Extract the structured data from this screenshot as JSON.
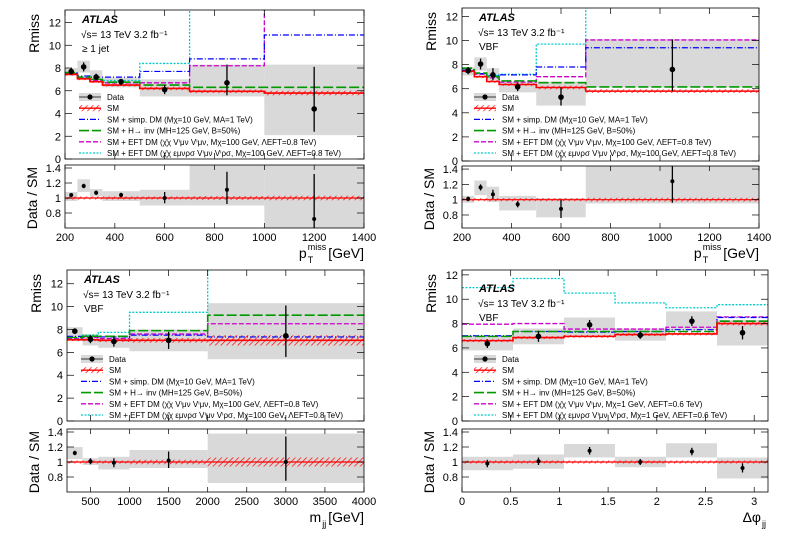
{
  "colors": {
    "data": "#000000",
    "sm": "#ff0000",
    "simp_dm": "#0000ff",
    "h_inv": "#009900",
    "eft1": "#cc00cc",
    "eft2": "#00cccc",
    "unc_band": "#d9d9d9"
  },
  "chart_data": [
    {
      "type": "line",
      "experiment": "ATLAS",
      "energy": "√s= 13 TeV  3.2 fb⁻¹",
      "region": "≥ 1 jet",
      "ylabel": "Rmiss",
      "ratio_ylabel": "Data / SM",
      "xlabel": "p",
      "xlabel_main": "p",
      "xlabel_sup": "miss",
      "xlabel_sub": "T",
      "xlabel_unit": " [GeV]",
      "xlim": [
        200,
        1400
      ],
      "ylim": [
        0,
        13.1
      ],
      "ratio_ylim": [
        0.6,
        1.44
      ],
      "xticks": [
        200,
        400,
        600,
        800,
        1000,
        1200,
        1400
      ],
      "yticks": [
        0,
        2,
        4,
        6,
        8,
        10,
        12
      ],
      "ratio_yticks": [
        0.8,
        1,
        1.2,
        1.4
      ],
      "bin_edges": [
        200,
        250,
        300,
        350,
        500,
        700,
        1000,
        1400
      ],
      "data": {
        "x": [
          225,
          275,
          325,
          425,
          600,
          850,
          1200
        ],
        "y": [
          7.7,
          8.1,
          7.2,
          6.8,
          6.1,
          6.7,
          4.4
        ],
        "lo": [
          7.4,
          7.7,
          6.95,
          6.5,
          5.7,
          5.6,
          2.4
        ],
        "hi": [
          8.0,
          8.5,
          7.5,
          7.0,
          6.5,
          8.3,
          8.1
        ]
      },
      "unc_box": {
        "lo": [
          7.3,
          7.6,
          6.95,
          6.3,
          5.5,
          5.5,
          2.1
        ],
        "hi": [
          8.0,
          8.65,
          7.8,
          7.15,
          7.0,
          8.3,
          8.3
        ]
      },
      "sm": {
        "values": [
          7.45,
          7.05,
          6.8,
          6.5,
          6.2,
          5.95,
          5.8
        ],
        "band": [
          0.12,
          0.12,
          0.12,
          0.12,
          0.15,
          0.15,
          0.2
        ]
      },
      "models": {
        "simp_dm": [
          7.55,
          7.3,
          7.2,
          7.2,
          7.7,
          8.8,
          10.9
        ],
        "h_inv": [
          7.6,
          7.2,
          7.0,
          6.75,
          6.5,
          6.3,
          6.3
        ],
        "eft1": [
          7.5,
          7.1,
          6.9,
          6.7,
          6.7,
          8.2,
          null
        ],
        "eft2": [
          7.55,
          7.15,
          7.0,
          6.9,
          8.4,
          null,
          null
        ]
      },
      "ratio": {
        "y": [
          1.04,
          1.16,
          1.07,
          1.04,
          1.0,
          1.11,
          0.72
        ],
        "lo": [
          1.02,
          1.13,
          1.04,
          1.01,
          0.93,
          0.92,
          0.45
        ],
        "hi": [
          1.06,
          1.19,
          1.1,
          1.07,
          1.08,
          1.35,
          1.32
        ],
        "box_lo": [
          0.96,
          1.08,
          1.02,
          0.96,
          0.9,
          0.9,
          0.55
        ],
        "box_hi": [
          1.08,
          1.25,
          1.12,
          1.09,
          1.11,
          1.44,
          1.44
        ],
        "sm_band": [
          0.02,
          0.02,
          0.02,
          0.02,
          0.02,
          0.025,
          0.03
        ]
      },
      "legend": [
        "Data",
        "SM",
        "SM + simp. DM (Mχ=10 GeV, MA=1 TeV)",
        "SM + H→ inv (MH=125 GeV, B=50%)",
        "SM + EFT DM (χ̄χ Vⁱμν Vⁱμν, Mχ=100 GeV, ΛEFT=0.8 TeV)",
        "SM + EFT DM (χ̄χ εμνρσ Vⁱμν Vⁱρσ, Mχ=100 GeV, ΛEFT=0.8 TeV)"
      ]
    },
    {
      "type": "line",
      "experiment": "ATLAS",
      "energy": "√s= 13 TeV  3.2 fb⁻¹",
      "region": "VBF",
      "ylabel": "Rmiss",
      "ratio_ylabel": "Data / SM",
      "xlabel_main": "p",
      "xlabel_sup": "miss",
      "xlabel_sub": "T",
      "xlabel_unit": " [GeV]",
      "xlim": [
        200,
        1400
      ],
      "ylim": [
        0,
        12.7
      ],
      "ratio_ylim": [
        0.63,
        1.44
      ],
      "xticks": [
        200,
        400,
        600,
        800,
        1000,
        1200,
        1400
      ],
      "yticks": [
        0,
        2,
        4,
        6,
        8,
        10,
        12
      ],
      "ratio_yticks": [
        0.8,
        1,
        1.2,
        1.4
      ],
      "bin_edges": [
        200,
        250,
        300,
        350,
        500,
        700,
        1400
      ],
      "data": {
        "x": [
          225,
          275,
          325,
          425,
          600,
          1050
        ],
        "y": [
          7.5,
          8.05,
          7.15,
          6.15,
          5.3,
          7.6
        ],
        "lo": [
          7.2,
          7.6,
          6.7,
          5.8,
          4.6,
          5.8
        ],
        "hi": [
          7.8,
          8.5,
          7.7,
          6.5,
          6.1,
          10.1
        ]
      },
      "unc_box": {
        "lo": [
          7.1,
          7.5,
          6.7,
          5.7,
          4.6,
          6.1
        ],
        "hi": [
          7.8,
          8.6,
          7.7,
          6.6,
          6.6,
          10.1
        ]
      },
      "sm": {
        "values": [
          7.45,
          7.0,
          6.6,
          6.35,
          6.1,
          5.8
        ],
        "band": [
          0.12,
          0.12,
          0.12,
          0.12,
          0.15,
          0.15
        ]
      },
      "models": {
        "simp_dm": [
          7.55,
          7.25,
          7.1,
          7.15,
          7.8,
          9.4
        ],
        "h_inv": [
          7.7,
          7.3,
          7.0,
          6.65,
          6.5,
          6.15
        ],
        "eft1": [
          7.5,
          7.2,
          6.9,
          6.55,
          7.0,
          10.05
        ],
        "eft2": [
          7.55,
          7.25,
          7.1,
          7.2,
          9.7,
          null
        ]
      },
      "ratio": {
        "y": [
          1.01,
          1.16,
          1.07,
          0.94,
          0.88,
          1.24
        ],
        "lo": [
          0.98,
          1.12,
          1.01,
          0.9,
          0.76,
          0.96
        ],
        "hi": [
          1.04,
          1.2,
          1.13,
          0.98,
          1.0,
          1.44
        ],
        "box_lo": [
          0.96,
          1.06,
          0.97,
          0.86,
          0.77,
          0.95
        ],
        "box_hi": [
          1.05,
          1.25,
          1.17,
          1.05,
          1.02,
          1.44
        ],
        "sm_band": [
          0.02,
          0.02,
          0.02,
          0.02,
          0.02,
          0.025
        ]
      },
      "legend": [
        "Data",
        "SM",
        "SM + simp. DM (Mχ=10 GeV, MA=1 TeV)",
        "SM + H→ inv (MH=125 GeV, B=50%)",
        "SM + EFT DM (χ̄χ Vⁱμν Vⁱμν, Mχ=100 GeV, ΛEFT=0.8 TeV)",
        "SM + EFT DM (χ̄χ εμνρσ Vⁱμν Vⁱρσ, Mχ=100 GeV, ΛEFT=0.8 TeV)"
      ]
    },
    {
      "type": "line",
      "experiment": "ATLAS",
      "energy": "√s= 13 TeV  3.2 fb⁻¹",
      "region": "VBF",
      "ylabel": "Rmiss",
      "ratio_ylabel": "Data / SM",
      "xlabel_main": "m",
      "xlabel_sup": "",
      "xlabel_sub": "jj",
      "xlabel_unit": " [GeV]",
      "xlim": [
        200,
        4000
      ],
      "ylim": [
        0,
        13.2
      ],
      "ratio_ylim": [
        0.6,
        1.44
      ],
      "xticks": [
        500,
        1000,
        1500,
        2000,
        2500,
        3000,
        3500,
        4000
      ],
      "yticks": [
        0,
        2,
        4,
        6,
        8,
        10,
        12
      ],
      "ratio_yticks": [
        0.8,
        1,
        1.2,
        1.4
      ],
      "bin_edges": [
        200,
        400,
        600,
        1000,
        2000,
        4000
      ],
      "data": {
        "x": [
          300,
          500,
          800,
          1500,
          3000
        ],
        "y": [
          7.85,
          7.15,
          6.95,
          7.05,
          7.45
        ],
        "lo": [
          7.6,
          6.8,
          6.5,
          6.3,
          5.6
        ],
        "hi": [
          8.1,
          7.5,
          7.4,
          7.8,
          10.1
        ]
      },
      "unc_box": {
        "lo": [
          7.3,
          6.6,
          6.4,
          6.1,
          5.4
        ],
        "hi": [
          8.2,
          7.6,
          7.4,
          8.0,
          10.3
        ]
      },
      "sm": {
        "values": [
          7.1,
          7.1,
          7.05,
          7.05,
          7.05
        ],
        "band": [
          0.12,
          0.12,
          0.15,
          0.2,
          0.45
        ]
      },
      "models": {
        "simp_dm": [
          7.4,
          7.4,
          7.35,
          7.5,
          7.35
        ],
        "h_inv": [
          7.3,
          7.4,
          7.4,
          7.9,
          9.25
        ],
        "eft1": [
          7.2,
          7.3,
          7.2,
          7.6,
          8.5
        ],
        "eft2": [
          7.25,
          7.5,
          7.75,
          9.5,
          null
        ]
      },
      "ratio": {
        "y": [
          1.12,
          1.01,
          0.99,
          1.02,
          1.0
        ],
        "lo": [
          1.09,
          0.97,
          0.93,
          0.92,
          0.75
        ],
        "hi": [
          1.15,
          1.05,
          1.05,
          1.14,
          1.34
        ],
        "box_lo": [
          1.04,
          0.96,
          0.9,
          0.92,
          0.72
        ],
        "box_hi": [
          1.2,
          1.05,
          1.07,
          1.16,
          1.38
        ],
        "sm_band": [
          0.02,
          0.02,
          0.02,
          0.03,
          0.06
        ]
      },
      "legend": [
        "Data",
        "SM",
        "SM + simp. DM (Mχ=10 GeV, MA=1 TeV)",
        "SM + H→ inv (MH=125 GeV, B=50%)",
        "SM + EFT DM (χ̄χ Vⁱμν Vⁱμν, Mχ=100 GeV, ΛEFT=0.8 TeV)",
        "SM + EFT DM (χ̄χ εμνρσ Vⁱμν Vⁱρσ, Mχ=100 GeV, ΛEFT=0.8 TeV)"
      ]
    },
    {
      "type": "line",
      "experiment": "ATLAS",
      "energy": "√s= 13 TeV  3.2 fb⁻¹",
      "region": "VBF",
      "ylabel": "Rmiss",
      "ratio_ylabel": "Data / SM",
      "xlabel_main": "Δφ",
      "xlabel_sup": "",
      "xlabel_sub": "jj",
      "xlabel_unit": "",
      "xlim": [
        0,
        3.1416
      ],
      "ylim": [
        0,
        12.4
      ],
      "ratio_ylim": [
        0.6,
        1.44
      ],
      "xticks": [
        0,
        0.5,
        1,
        1.5,
        2,
        2.5,
        3
      ],
      "yticks": [
        0,
        2,
        4,
        6,
        8,
        10,
        12
      ],
      "ratio_yticks": [
        0.8,
        1,
        1.2,
        1.4
      ],
      "bin_edges": [
        0,
        0.5236,
        1.0472,
        1.5708,
        2.0944,
        2.618,
        3.1416
      ],
      "data": {
        "x": [
          0.26,
          0.785,
          1.31,
          1.83,
          2.36,
          2.88
        ],
        "y": [
          6.35,
          6.95,
          7.9,
          7.05,
          8.2,
          7.25
        ],
        "lo": [
          6.0,
          6.5,
          7.5,
          6.75,
          7.8,
          6.7
        ],
        "hi": [
          6.7,
          7.4,
          8.3,
          7.35,
          8.6,
          7.8
        ]
      },
      "unc_box": {
        "lo": [
          5.8,
          6.3,
          7.0,
          6.6,
          7.5,
          6.2
        ],
        "hi": [
          7.0,
          7.6,
          8.5,
          7.6,
          9.0,
          8.3
        ]
      },
      "sm": {
        "values": [
          6.6,
          6.85,
          6.95,
          7.1,
          7.15,
          8.0
        ],
        "band": [
          0.12,
          0.12,
          0.12,
          0.12,
          0.12,
          0.15
        ]
      },
      "models": {
        "simp_dm": [
          7.0,
          7.35,
          7.3,
          7.35,
          7.5,
          8.5
        ],
        "h_inv": [
          6.95,
          7.35,
          7.35,
          7.35,
          7.35,
          8.2
        ],
        "eft1": [
          7.95,
          8.0,
          7.55,
          7.55,
          7.7,
          8.55
        ],
        "eft2": [
          10.95,
          11.7,
          10.5,
          9.7,
          9.3,
          9.55
        ]
      },
      "ratio": {
        "y": [
          0.98,
          1.01,
          1.15,
          1.0,
          1.14,
          0.92
        ],
        "lo": [
          0.93,
          0.96,
          1.1,
          0.96,
          1.09,
          0.86
        ],
        "hi": [
          1.03,
          1.06,
          1.2,
          1.04,
          1.19,
          0.98
        ],
        "box_lo": [
          0.89,
          0.91,
          1.06,
          0.93,
          1.06,
          0.78
        ],
        "box_hi": [
          1.07,
          1.1,
          1.24,
          1.07,
          1.25,
          1.06
        ],
        "sm_band": [
          0.02,
          0.02,
          0.02,
          0.02,
          0.02,
          0.02
        ]
      },
      "legend": [
        "Data",
        "SM",
        "SM + simp. DM (Mχ=10 GeV, MA=1 TeV)",
        "SM + H→ inv (MH=125 GeV, B=50%)",
        "SM + EFT DM (χ̄χ Vⁱμν Vⁱμν, Mχ=1 GeV, ΛEFT=0.6 TeV)",
        "SM + EFT DM (χ̄χ εμνρσ Vⁱμν Vⁱρσ, Mχ=1 GeV, ΛEFT=0.6 TeV)"
      ]
    }
  ]
}
